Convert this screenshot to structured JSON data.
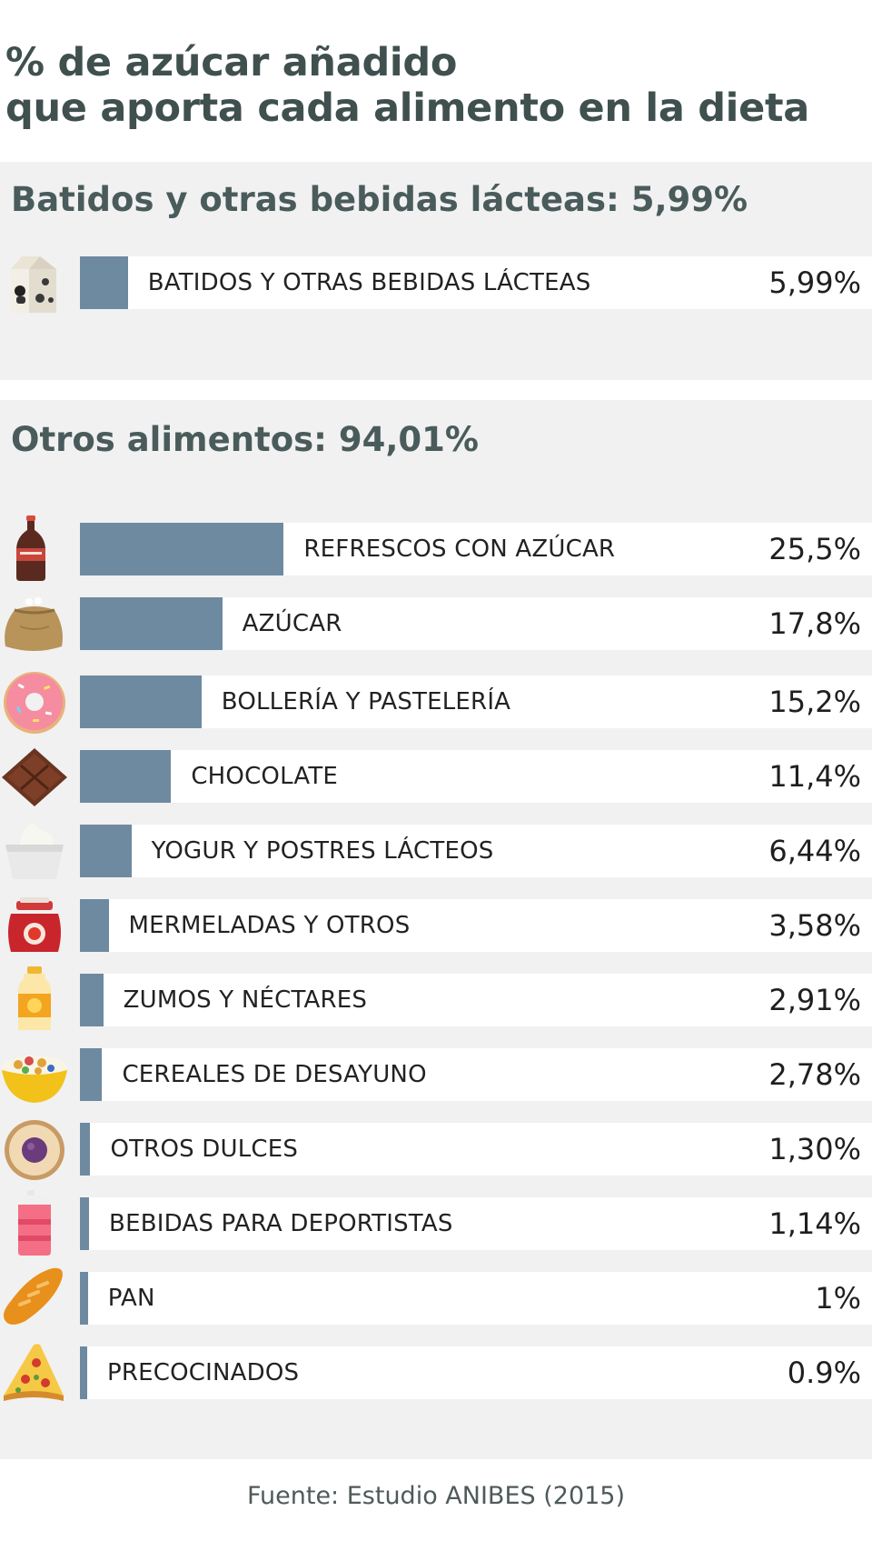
{
  "title_line1": "% de azúcar añadido",
  "title_line2": "que aporta cada alimento en la dieta",
  "source": "Fuente: Estudio ANIBES (2015)",
  "colors": {
    "bar": "#6e8aa1",
    "panel": "#f1f1f1",
    "track": "#ffffff",
    "title": "#3f504f"
  },
  "chart_data": {
    "type": "bar",
    "orientation": "horizontal",
    "title": "% de azúcar añadido que aporta cada alimento en la dieta",
    "xlim": [
      0,
      100
    ],
    "groups": [
      {
        "title": "Batidos y otras bebidas lácteas: 5,99%",
        "items": [
          {
            "label": "BATIDOS Y OTRAS BEBIDAS LÁCTEAS",
            "display": "5,99%",
            "value": 5.99,
            "icon": "milk-carton-icon"
          }
        ]
      },
      {
        "title": "Otros alimentos: 94,01%",
        "items": [
          {
            "label": "REFRESCOS CON AZÚCAR",
            "display": "25,5%",
            "value": 25.5,
            "icon": "soda-bottle-icon"
          },
          {
            "label": "AZÚCAR",
            "display": "17,8%",
            "value": 17.8,
            "icon": "sugar-sack-icon"
          },
          {
            "label": "BOLLERÍA Y PASTELERÍA",
            "display": "15,2%",
            "value": 15.2,
            "icon": "donut-icon"
          },
          {
            "label": "CHOCOLATE",
            "display": "11,4%",
            "value": 11.4,
            "icon": "chocolate-bar-icon"
          },
          {
            "label": "YOGUR Y POSTRES LÁCTEOS",
            "display": "6,44%",
            "value": 6.44,
            "icon": "yogurt-icon"
          },
          {
            "label": "MERMELADAS Y OTROS",
            "display": "3,58%",
            "value": 3.58,
            "icon": "jam-jar-icon"
          },
          {
            "label": "ZUMOS Y NÉCTARES",
            "display": "2,91%",
            "value": 2.91,
            "icon": "juice-bottle-icon"
          },
          {
            "label": "CEREALES DE DESAYUNO",
            "display": "2,78%",
            "value": 2.78,
            "icon": "cereal-bowl-icon"
          },
          {
            "label": "OTROS DULCES",
            "display": "1,30%",
            "value": 1.3,
            "icon": "cookie-icon"
          },
          {
            "label": "BEBIDAS PARA DEPORTISTAS",
            "display": "1,14%",
            "value": 1.14,
            "icon": "sports-bottle-icon"
          },
          {
            "label": "PAN",
            "display": "1%",
            "value": 1.0,
            "icon": "bread-icon"
          },
          {
            "label": "PRECOCINADOS",
            "display": "0.9%",
            "value": 0.9,
            "icon": "pizza-slice-icon"
          }
        ]
      }
    ]
  }
}
